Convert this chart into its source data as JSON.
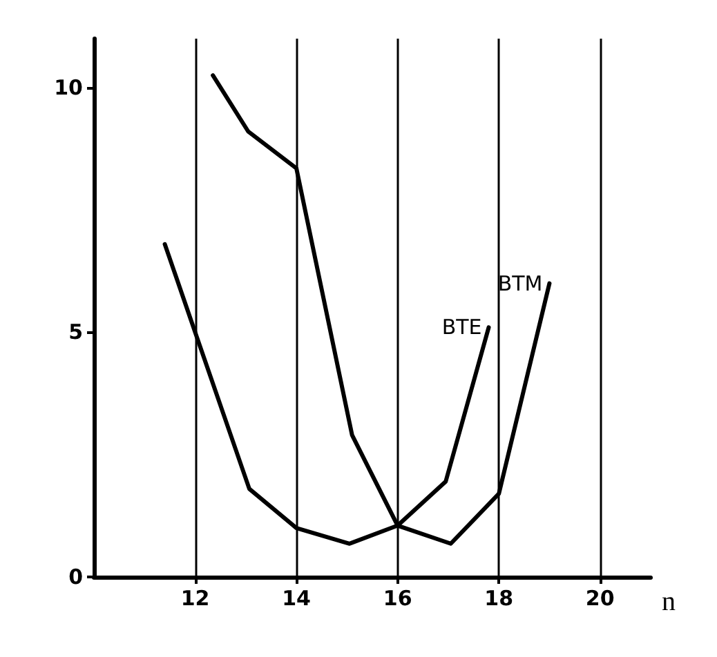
{
  "chart_data": {
    "type": "line",
    "xlabel": "n",
    "xlim": [
      10,
      21
    ],
    "xticks": [
      12,
      14,
      16,
      18,
      20
    ],
    "ylim": [
      0,
      11
    ],
    "yticks": [
      0,
      5,
      10
    ],
    "grid": "x",
    "legend": false,
    "series": [
      {
        "name": "BTE",
        "color": "#000000",
        "x": [
          12.35,
          13.05,
          14,
          15.1,
          16,
          16.95,
          17.8
        ],
        "values": [
          10.25,
          9.1,
          8.35,
          2.9,
          1.05,
          1.95,
          5.1
        ]
      },
      {
        "name": "BTM",
        "color": "#000000",
        "x": [
          11.4,
          12,
          13.07,
          14,
          15.05,
          16,
          17.05,
          18,
          19
        ],
        "values": [
          6.8,
          5,
          1.8,
          1.0,
          0.68,
          1.05,
          0.68,
          1.7,
          6.0
        ]
      }
    ]
  }
}
